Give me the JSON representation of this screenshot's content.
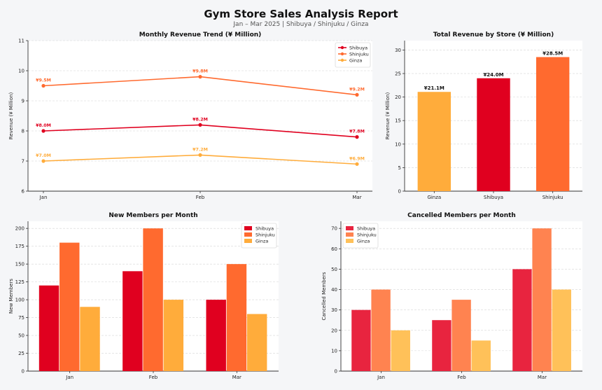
{
  "header": {
    "title": "Gym Store Sales Analysis Report",
    "subtitle": "Jan – Mar 2025  |  Shibuya / Shinjuku / Ginza"
  },
  "colors": {
    "shibuya": "#e0001f",
    "shinjuku": "#ff6a2f",
    "ginza": "#ffac3b",
    "shibuya_light": "#e8243f",
    "shinjuku_light": "#ff8350",
    "ginza_light": "#ffc159"
  },
  "chart_data": [
    {
      "id": "revenue-trend",
      "type": "line",
      "title": "Monthly Revenue Trend (¥ Million)",
      "xlabel": "",
      "ylabel": "Revenue (¥ Million)",
      "categories": [
        "Jan",
        "Feb",
        "Mar"
      ],
      "ylim": [
        6,
        11
      ],
      "yticks": [
        6,
        7,
        8,
        9,
        10,
        11
      ],
      "grid": true,
      "legend": "top-right",
      "series": [
        {
          "name": "Shibuya",
          "color": "#e0001f",
          "values": [
            8.0,
            8.2,
            7.8
          ],
          "labels": [
            "¥8.0M",
            "¥8.2M",
            "¥7.8M"
          ]
        },
        {
          "name": "Shinjuku",
          "color": "#ff6a2f",
          "values": [
            9.5,
            9.8,
            9.2
          ],
          "labels": [
            "¥9.5M",
            "¥9.8M",
            "¥9.2M"
          ]
        },
        {
          "name": "Ginza",
          "color": "#ffac3b",
          "values": [
            7.0,
            7.2,
            6.9
          ],
          "labels": [
            "¥7.0M",
            "¥7.2M",
            "¥6.9M"
          ]
        }
      ]
    },
    {
      "id": "total-revenue",
      "type": "bar",
      "title": "Total Revenue by Store (¥ Million)",
      "xlabel": "",
      "ylabel": "Revenue (¥ Million)",
      "categories": [
        "Ginza",
        "Shibuya",
        "Shinjuku"
      ],
      "values": [
        21.1,
        24.0,
        28.5
      ],
      "labels": [
        "¥21.1M",
        "¥24.0M",
        "¥28.5M"
      ],
      "colors": [
        "#ffac3b",
        "#e0001f",
        "#ff6a2f"
      ],
      "ylim": [
        0,
        32
      ],
      "yticks": [
        0,
        5,
        10,
        15,
        20,
        25,
        30
      ],
      "grid": true
    },
    {
      "id": "new-members",
      "type": "bar",
      "title": "New Members per Month",
      "xlabel": "",
      "ylabel": "New Members",
      "categories": [
        "Jan",
        "Feb",
        "Mar"
      ],
      "ylim": [
        0,
        210
      ],
      "yticks": [
        0,
        25,
        50,
        75,
        100,
        125,
        150,
        175,
        200
      ],
      "grid": true,
      "legend": "top-right",
      "series": [
        {
          "name": "Shibuya",
          "color": "#e0001f",
          "values": [
            120,
            140,
            100
          ]
        },
        {
          "name": "Shinjuku",
          "color": "#ff6a2f",
          "values": [
            180,
            200,
            150
          ]
        },
        {
          "name": "Ginza",
          "color": "#ffac3b",
          "values": [
            90,
            100,
            80
          ]
        }
      ]
    },
    {
      "id": "cancelled-members",
      "type": "bar",
      "title": "Cancelled Members per Month",
      "xlabel": "",
      "ylabel": "Cancelled Members",
      "categories": [
        "Jan",
        "Feb",
        "Mar"
      ],
      "ylim": [
        0,
        73.5
      ],
      "yticks": [
        0,
        10,
        20,
        30,
        40,
        50,
        60,
        70
      ],
      "grid": true,
      "legend": "top-left",
      "series": [
        {
          "name": "Shibuya",
          "color": "#e8243f",
          "values": [
            30,
            25,
            50
          ]
        },
        {
          "name": "Shinjuku",
          "color": "#ff8350",
          "values": [
            40,
            35,
            70
          ]
        },
        {
          "name": "Ginza",
          "color": "#ffc159",
          "values": [
            20,
            15,
            40
          ]
        }
      ]
    }
  ]
}
